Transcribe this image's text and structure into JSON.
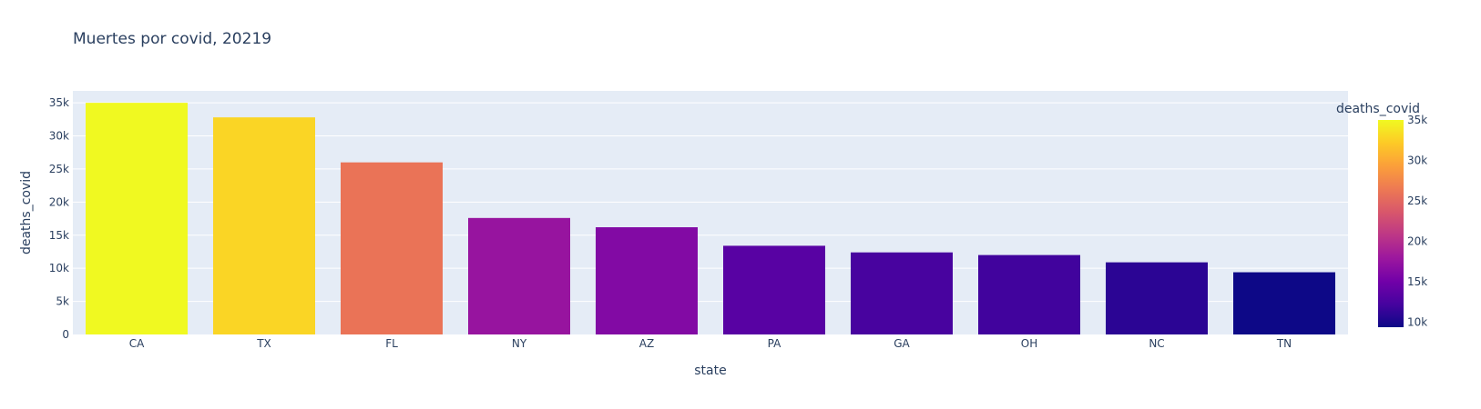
{
  "chart_data": {
    "type": "bar",
    "title": "Muertes por covid, 20219",
    "xlabel": "state",
    "ylabel": "deaths_covid",
    "categories": [
      "CA",
      "TX",
      "FL",
      "NY",
      "AZ",
      "PA",
      "GA",
      "OH",
      "NC",
      "TN"
    ],
    "values": [
      35000,
      32800,
      26000,
      17600,
      16200,
      13400,
      12400,
      12000,
      10900,
      9400
    ],
    "ylim": [
      0,
      36800
    ],
    "yticks": [
      0,
      5000,
      10000,
      15000,
      20000,
      25000,
      30000,
      35000
    ],
    "ytick_labels": [
      "0",
      "5k",
      "10k",
      "15k",
      "20k",
      "25k",
      "30k",
      "35k"
    ],
    "grid": true,
    "colorbar": {
      "title": "deaths_covid",
      "range": [
        9400,
        35000
      ],
      "ticks": [
        10000,
        15000,
        20000,
        25000,
        30000,
        35000
      ],
      "tick_labels": [
        "10k",
        "15k",
        "20k",
        "25k",
        "30k",
        "35k"
      ],
      "colorscale": [
        "#0d0887",
        "#46039f",
        "#7201a8",
        "#9c179e",
        "#bd3786",
        "#d8576b",
        "#ed7953",
        "#fb9f3a",
        "#fdca26",
        "#f0f921"
      ]
    }
  },
  "colors": {
    "plot_background": "#e5ecf6",
    "gridline": "#ffffff",
    "text": "#2a3f5f"
  }
}
